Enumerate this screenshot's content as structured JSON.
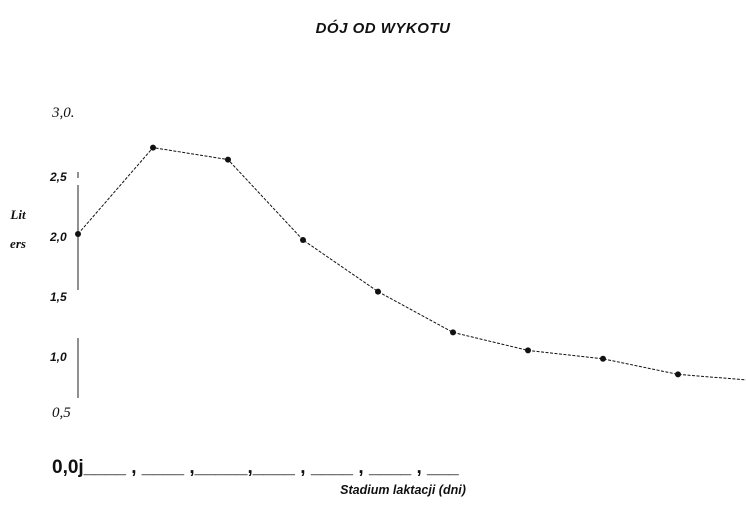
{
  "chart_data": {
    "type": "line",
    "title": "DÓJ OD WYKOTU",
    "xlabel": "Stadium laktacji (dni)",
    "ylabel": "Liters",
    "x_tick_row": "0,0j____ , ____ ,_____,____ , ____ , ____ , ___",
    "y_ticks": [
      {
        "label": "3,0.",
        "value": 3.0,
        "style": "serif"
      },
      {
        "label": "2,5",
        "value": 2.5,
        "style": "bold"
      },
      {
        "label": "2,0",
        "value": 2.0,
        "style": "bold"
      },
      {
        "label": "1,5",
        "value": 1.5,
        "style": "bold"
      },
      {
        "label": "1,0",
        "value": 1.0,
        "style": "bold"
      },
      {
        "label": "0,5",
        "value": 0.5,
        "style": "serif"
      }
    ],
    "ylim": [
      0.5,
      3.0
    ],
    "grid": false,
    "series": [
      {
        "color": "#111111",
        "points": [
          {
            "x": 0,
            "y": 2.05
          },
          {
            "x": 1,
            "y": 2.77
          },
          {
            "x": 2,
            "y": 2.67
          },
          {
            "x": 3,
            "y": 2.0
          },
          {
            "x": 4,
            "y": 1.57
          },
          {
            "x": 5,
            "y": 1.23
          },
          {
            "x": 6,
            "y": 1.08
          },
          {
            "x": 7,
            "y": 1.01
          },
          {
            "x": 8,
            "y": 0.88
          },
          {
            "x": 9,
            "y": 0.83
          }
        ]
      }
    ]
  }
}
